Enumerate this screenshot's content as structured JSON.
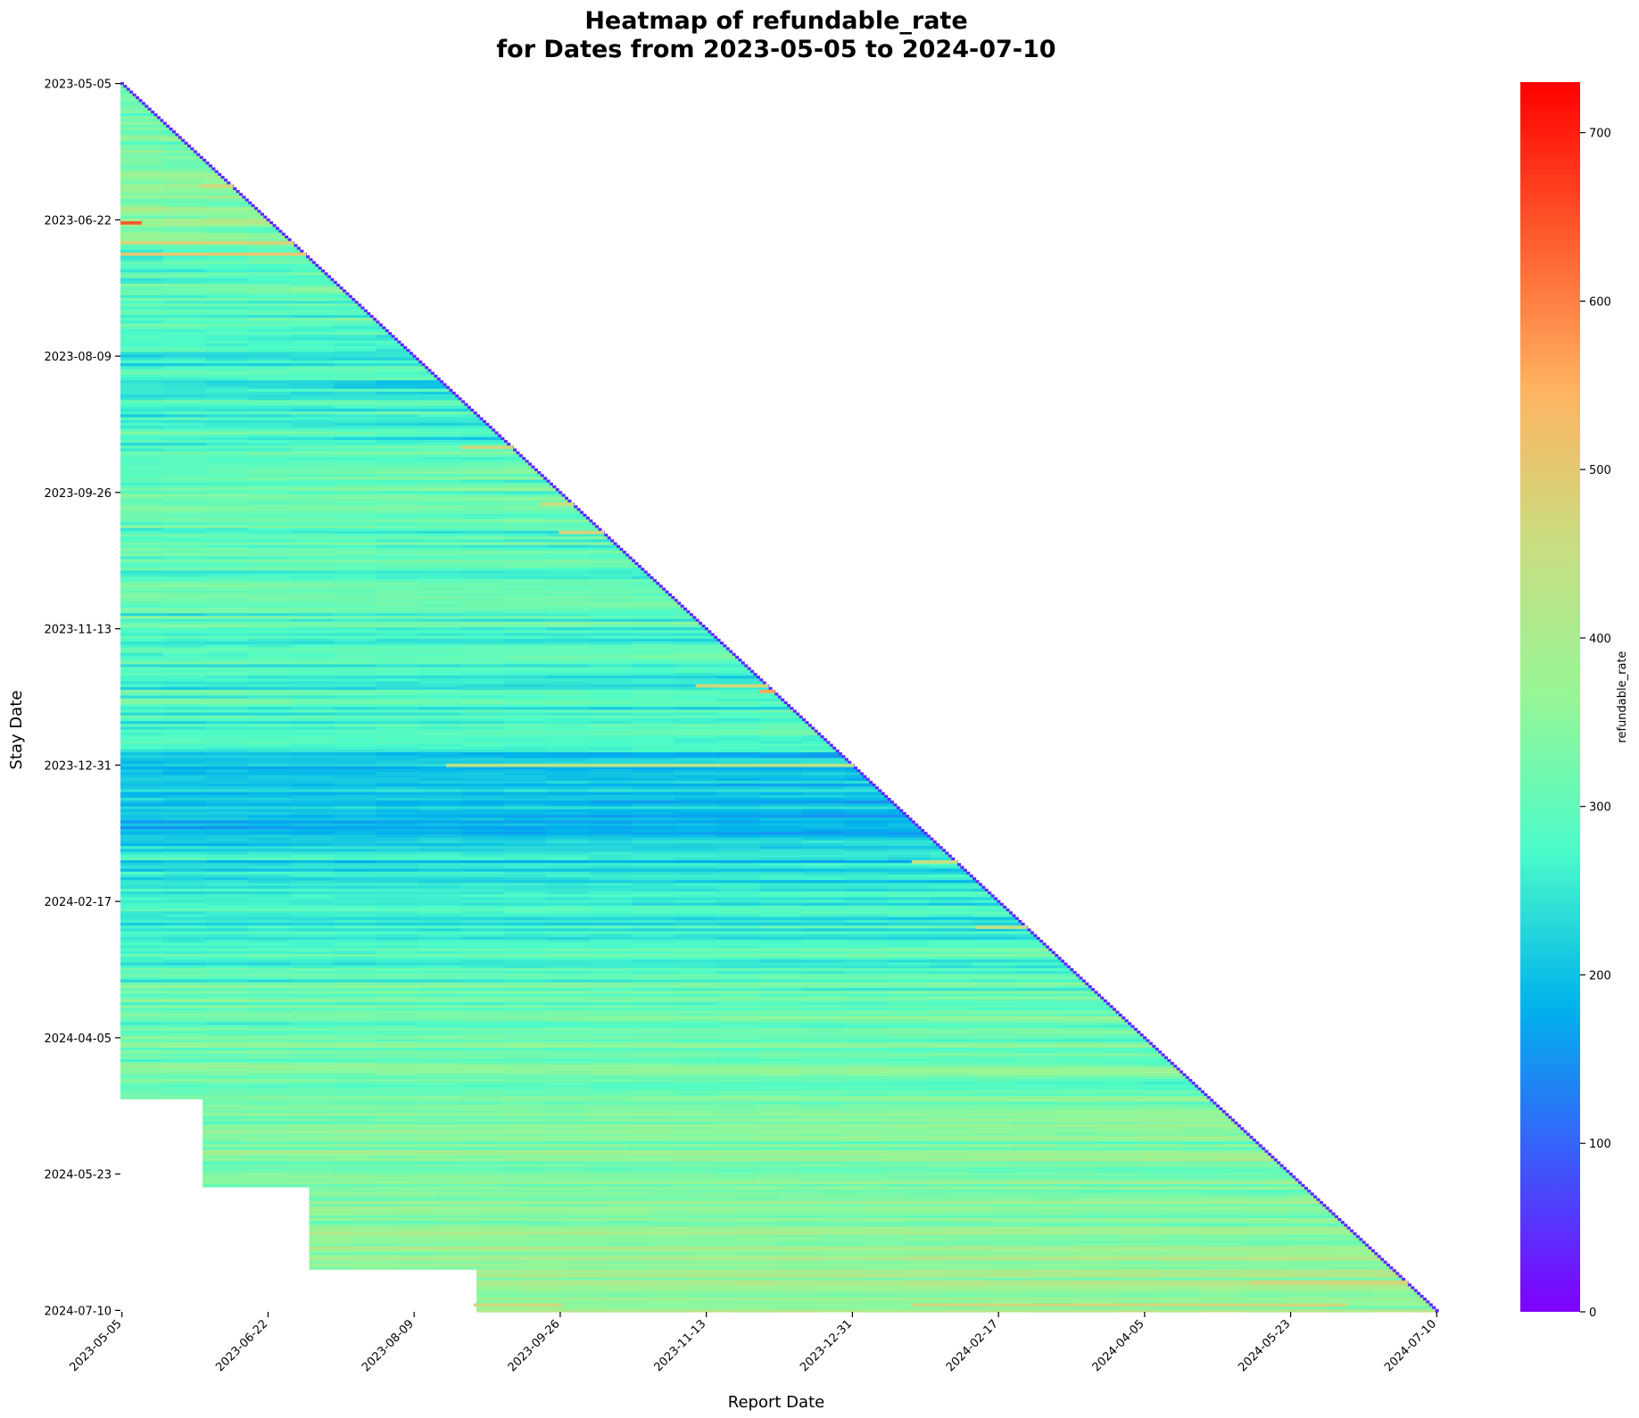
{
  "chart_data": {
    "type": "heatmap",
    "title_line1": "Heatmap of refundable_rate",
    "title_line2": "for Dates from 2023-05-05 to 2024-07-10",
    "xlabel": "Report Date",
    "ylabel": "Stay Date",
    "colorbar_label": "refundable_rate",
    "colormap": "rainbow",
    "colormap_stops": [
      "#8000ff",
      "#3a5bfb",
      "#00b4ec",
      "#4bfbc9",
      "#96f696",
      "#c9dd80",
      "#ffb360",
      "#ff5a2d",
      "#ff0000"
    ],
    "value_range": [
      0,
      730
    ],
    "colorbar_ticks": [
      "0",
      "100",
      "200",
      "300",
      "400",
      "500",
      "600",
      "700"
    ],
    "colorbar_tick_values": [
      0,
      100,
      200,
      300,
      400,
      500,
      600,
      700
    ],
    "date_range": [
      "2023-05-05",
      "2024-07-10"
    ],
    "x_tick_labels": [
      "2023-05-05",
      "2023-06-22",
      "2023-08-09",
      "2023-09-26",
      "2023-11-13",
      "2023-12-31",
      "2024-02-17",
      "2024-04-05",
      "2024-05-23",
      "2024-07-10"
    ],
    "y_tick_labels": [
      "2023-05-05",
      "2023-06-22",
      "2023-08-09",
      "2023-09-26",
      "2023-11-13",
      "2023-12-31",
      "2024-02-17",
      "2024-04-05",
      "2024-05-23",
      "2024-07-10"
    ],
    "structure": "lower-triangular: a value exists only where report date <= stay date; earliest report dates are missing for later stay dates",
    "row_profile": [
      {
        "stay_date": "2023-05-05",
        "typical": 300
      },
      {
        "stay_date": "2023-06-01",
        "typical": 330
      },
      {
        "stay_date": "2023-06-22",
        "typical": 360
      },
      {
        "stay_date": "2023-07-10",
        "typical": 300
      },
      {
        "stay_date": "2023-08-09",
        "typical": 255
      },
      {
        "stay_date": "2023-09-05",
        "typical": 280
      },
      {
        "stay_date": "2023-09-26",
        "typical": 300
      },
      {
        "stay_date": "2023-11-13",
        "typical": 285
      },
      {
        "stay_date": "2023-12-20",
        "typical": 270
      },
      {
        "stay_date": "2023-12-31",
        "typical": 200
      },
      {
        "stay_date": "2024-01-25",
        "typical": 205
      },
      {
        "stay_date": "2024-02-17",
        "typical": 245
      },
      {
        "stay_date": "2024-03-10",
        "typical": 290
      },
      {
        "stay_date": "2024-04-05",
        "typical": 315
      },
      {
        "stay_date": "2024-05-23",
        "typical": 345
      },
      {
        "stay_date": "2024-07-10",
        "typical": 385
      }
    ],
    "diagonal_value": 40,
    "missing_blocks": [
      {
        "stay_from": "2024-04-27",
        "stay_to": "2024-07-10",
        "report_from": "2023-05-05",
        "report_to": "2023-05-31"
      },
      {
        "stay_from": "2024-05-28",
        "stay_to": "2024-07-10",
        "report_from": "2023-05-05",
        "report_to": "2023-07-05"
      },
      {
        "stay_from": "2024-06-26",
        "stay_to": "2024-07-10",
        "report_from": "2023-05-05",
        "report_to": "2023-08-29"
      }
    ],
    "highlights": [
      {
        "stay_date": "2023-06-23",
        "report_from": "2023-05-05",
        "report_to": "2023-05-11",
        "value": 640
      },
      {
        "stay_date": "2023-06-30",
        "report_from": "2023-05-05",
        "report_to": "2023-07-05",
        "value": 480
      },
      {
        "stay_date": "2023-07-04",
        "report_from": "2023-05-05",
        "report_to": "2023-07-08",
        "value": 500
      },
      {
        "stay_date": "2023-07-05",
        "report_from": "2023-07-06",
        "report_to": "2023-07-08",
        "value": 620
      },
      {
        "stay_date": "2023-06-10",
        "report_from": "2023-05-31",
        "report_to": "2023-06-10",
        "value": 470
      },
      {
        "stay_date": "2023-09-10",
        "report_from": "2023-08-25",
        "report_to": "2023-09-10",
        "value": 470
      },
      {
        "stay_date": "2023-09-30",
        "report_from": "2023-09-20",
        "report_to": "2023-09-30",
        "value": 460
      },
      {
        "stay_date": "2023-10-10",
        "report_from": "2023-09-26",
        "report_to": "2023-10-10",
        "value": 480
      },
      {
        "stay_date": "2023-12-03",
        "report_from": "2023-11-10",
        "report_to": "2023-12-03",
        "value": 470
      },
      {
        "stay_date": "2023-12-05",
        "report_from": "2023-12-01",
        "report_to": "2023-12-05",
        "value": 560
      },
      {
        "stay_date": "2023-12-31",
        "report_from": "2023-08-20",
        "report_to": "2023-12-31",
        "value": 430
      },
      {
        "stay_date": "2024-02-03",
        "report_from": "2024-01-20",
        "report_to": "2024-02-03",
        "value": 450
      },
      {
        "stay_date": "2024-02-26",
        "report_from": "2024-02-10",
        "report_to": "2024-02-26",
        "value": 440
      },
      {
        "stay_date": "2024-06-30",
        "report_from": "2024-05-10",
        "report_to": "2024-06-30",
        "value": 480
      },
      {
        "stay_date": "2024-07-08",
        "report_from": "2023-08-29",
        "report_to": "2023-09-26",
        "value": 470
      },
      {
        "stay_date": "2024-07-08",
        "report_from": "2024-01-20",
        "report_to": "2024-06-10",
        "value": 470
      }
    ]
  }
}
